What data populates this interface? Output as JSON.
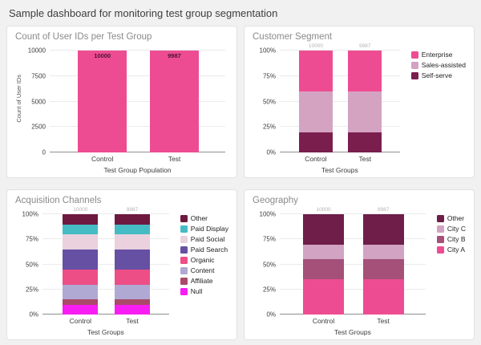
{
  "header": {
    "title": "Sample dashboard for monitoring test group segmentation"
  },
  "chart_data": [
    {
      "type": "bar",
      "title": "Count of User IDs per Test Group",
      "categories": [
        "Control",
        "Test"
      ],
      "values": [
        10000,
        9987
      ],
      "xlabel": "Test Group Population",
      "ylabel": "Count of User IDs",
      "ylim": [
        0,
        10000
      ],
      "yticks": [
        "0",
        "2500",
        "5000",
        "7500",
        "10000"
      ],
      "grid": true,
      "bar_color": "#ee4c92",
      "value_label_color": "#471434"
    },
    {
      "type": "bar",
      "stacked": true,
      "percent": true,
      "title": "Customer Segment",
      "categories": [
        "Control",
        "Test"
      ],
      "bar_totals": [
        "10000",
        "9987"
      ],
      "xlabel": "Test Groups",
      "ylim": [
        0,
        100
      ],
      "yticks": [
        "0%",
        "25%",
        "50%",
        "75%",
        "100%"
      ],
      "grid": true,
      "legend_position": "right",
      "series_note": "listed bottom-to-top of stack; legend displays top-to-bottom",
      "series": [
        {
          "name": "Self-serve",
          "color": "#7a1e4e",
          "values": [
            20,
            20
          ]
        },
        {
          "name": "Sales-assisted",
          "color": "#d4a3c2",
          "values": [
            40,
            40
          ]
        },
        {
          "name": "Enterprise",
          "color": "#ee4c92",
          "values": [
            40,
            40
          ]
        }
      ]
    },
    {
      "type": "bar",
      "stacked": true,
      "percent": true,
      "title": "Acquisition Channels",
      "categories": [
        "Control",
        "Test"
      ],
      "bar_totals": [
        "10000",
        "9987"
      ],
      "xlabel": "Test Groups",
      "ylim": [
        0,
        100
      ],
      "yticks": [
        "0%",
        "25%",
        "50%",
        "75%",
        "100%"
      ],
      "grid": true,
      "legend_position": "right",
      "series_note": "listed bottom-to-top of stack; legend displays top-to-bottom",
      "series": [
        {
          "name": "Null",
          "color": "#f71df3",
          "values": [
            10,
            10
          ]
        },
        {
          "name": "Affiliate",
          "color": "#a94a68",
          "values": [
            5,
            5
          ]
        },
        {
          "name": "Content",
          "color": "#b0a9d4",
          "values": [
            15,
            15
          ]
        },
        {
          "name": "Organic",
          "color": "#ed4e86",
          "values": [
            15,
            15
          ]
        },
        {
          "name": "Paid Search",
          "color": "#6650a4",
          "values": [
            20,
            20
          ]
        },
        {
          "name": "Paid Social",
          "color": "#ead1dd",
          "values": [
            15,
            15
          ]
        },
        {
          "name": "Paid Display",
          "color": "#45bcc4",
          "values": [
            10,
            10
          ]
        },
        {
          "name": "Other",
          "color": "#6e1a40",
          "values": [
            10,
            10
          ]
        }
      ]
    },
    {
      "type": "bar",
      "stacked": true,
      "percent": true,
      "title": "Geography",
      "categories": [
        "Control",
        "Test"
      ],
      "bar_totals": [
        "10000",
        "9987"
      ],
      "xlabel": "Test Groups",
      "ylim": [
        0,
        100
      ],
      "yticks": [
        "0%",
        "25%",
        "50%",
        "75%",
        "100%"
      ],
      "grid": true,
      "legend_position": "right",
      "series_note": "listed bottom-to-top of stack; legend displays top-to-bottom",
      "series": [
        {
          "name": "City A",
          "color": "#ee4c92",
          "values": [
            35,
            35
          ]
        },
        {
          "name": "City B",
          "color": "#a45079",
          "values": [
            20,
            20
          ]
        },
        {
          "name": "City C",
          "color": "#d2a3c2",
          "values": [
            15,
            15
          ]
        },
        {
          "name": "Other",
          "color": "#6e1e48",
          "values": [
            30,
            30
          ]
        }
      ]
    }
  ]
}
